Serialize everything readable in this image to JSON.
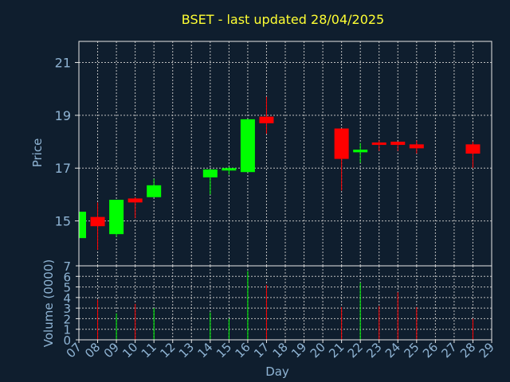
{
  "colors": {
    "background": "#0f1e2e",
    "frame": "#e8e8e8",
    "grid": "#bfbfbf",
    "text": "#8fb4d4",
    "title": "#ffff33",
    "up": "#00ff00",
    "down": "#ff0000"
  },
  "chart_data": {
    "type": "candlestick",
    "title": "BSET - last updated 28/04/2025",
    "xlabel": "Day",
    "ylabel_price": "Price",
    "ylabel_volume": "Volume (0000)",
    "grid": true,
    "x_ticks": [
      "07",
      "08",
      "09",
      "10",
      "11",
      "12",
      "13",
      "14",
      "15",
      "16",
      "17",
      "18",
      "19",
      "20",
      "21",
      "22",
      "23",
      "24",
      "25",
      "26",
      "27",
      "28",
      "29"
    ],
    "price_ylim": [
      13.3,
      21.8
    ],
    "price_ticks": [
      15,
      17,
      19,
      21
    ],
    "volume_ylim": [
      0,
      7
    ],
    "volume_ticks": [
      0,
      1,
      2,
      3,
      4,
      5,
      6,
      7
    ],
    "candles": [
      {
        "day": "07",
        "open": 14.35,
        "close": 15.35,
        "high": 15.45,
        "low": 14.3,
        "volume": 0
      },
      {
        "day": "08",
        "open": 15.15,
        "close": 14.8,
        "high": 15.7,
        "low": 13.9,
        "volume": 3.8
      },
      {
        "day": "09",
        "open": 14.5,
        "close": 15.8,
        "high": 15.8,
        "low": 14.4,
        "volume": 2.5
      },
      {
        "day": "10",
        "open": 15.85,
        "close": 15.7,
        "high": 15.9,
        "low": 15.1,
        "volume": 3.4
      },
      {
        "day": "11",
        "open": 15.9,
        "close": 16.35,
        "high": 16.6,
        "low": 15.9,
        "volume": 3.0
      },
      {
        "day": "14",
        "open": 16.65,
        "close": 16.95,
        "high": 16.95,
        "low": 16.0,
        "volume": 2.6
      },
      {
        "day": "15",
        "open": 16.95,
        "close": 17.0,
        "high": 17.05,
        "low": 16.75,
        "volume": 2.0
      },
      {
        "day": "16",
        "open": 16.85,
        "close": 18.85,
        "high": 18.85,
        "low": 16.85,
        "volume": 6.5
      },
      {
        "day": "17",
        "open": 18.95,
        "close": 18.7,
        "high": 19.7,
        "low": 18.3,
        "volume": 5.2
      },
      {
        "day": "21",
        "open": 18.5,
        "close": 17.35,
        "high": 18.5,
        "low": 16.15,
        "volume": 3.1
      },
      {
        "day": "22",
        "open": 17.6,
        "close": 17.7,
        "high": 17.95,
        "low": 17.2,
        "volume": 5.4
      },
      {
        "day": "23",
        "open": 17.97,
        "close": 17.88,
        "high": 18.05,
        "low": 17.65,
        "volume": 3.2
      },
      {
        "day": "24",
        "open": 18.0,
        "close": 17.88,
        "high": 18.0,
        "low": 17.65,
        "volume": 4.5
      },
      {
        "day": "25",
        "open": 17.9,
        "close": 17.75,
        "high": 18.05,
        "low": 17.55,
        "volume": 3.1
      },
      {
        "day": "28",
        "open": 17.9,
        "close": 17.55,
        "high": 18.0,
        "low": 17.0,
        "volume": 2.0
      }
    ]
  }
}
